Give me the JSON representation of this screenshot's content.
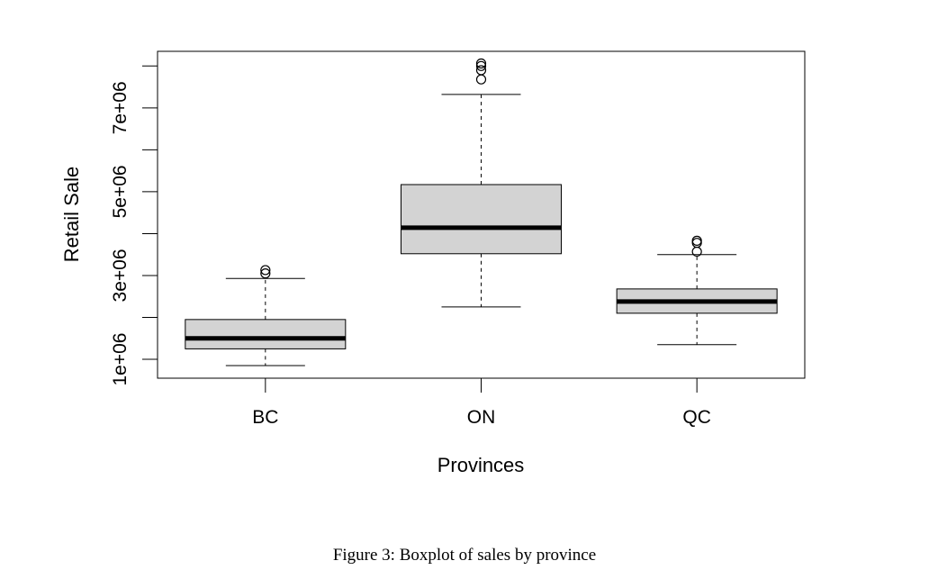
{
  "chart_data": {
    "type": "boxplot",
    "xlabel": "Provinces",
    "ylabel": "Retail Sale",
    "categories": [
      "BC",
      "ON",
      "QC"
    ],
    "ylim": [
      550000,
      8350000
    ],
    "yticks": [
      1000000,
      2000000,
      3000000,
      4000000,
      5000000,
      6000000,
      7000000,
      8000000
    ],
    "ytick_labels": [
      "1e+06",
      "",
      "3e+06",
      "",
      "5e+06",
      "",
      "7e+06",
      ""
    ],
    "grid": false,
    "legend": "none",
    "box_fill": "#d3d3d3",
    "boxes": [
      {
        "name": "BC",
        "whisker_low": 850000,
        "q1": 1250000,
        "median": 1500000,
        "q3": 1950000,
        "whisker_high": 2930000,
        "outliers": [
          3050000,
          3130000
        ]
      },
      {
        "name": "ON",
        "whisker_low": 2250000,
        "q1": 3520000,
        "median": 4140000,
        "q3": 5170000,
        "whisker_high": 7320000,
        "outliers": [
          7680000,
          7900000,
          8000000,
          8060000
        ]
      },
      {
        "name": "QC",
        "whisker_low": 1350000,
        "q1": 2100000,
        "median": 2380000,
        "q3": 2680000,
        "whisker_high": 3500000,
        "outliers": [
          3570000,
          3780000,
          3830000
        ]
      }
    ]
  },
  "caption": "Figure 3: Boxplot of sales by province"
}
